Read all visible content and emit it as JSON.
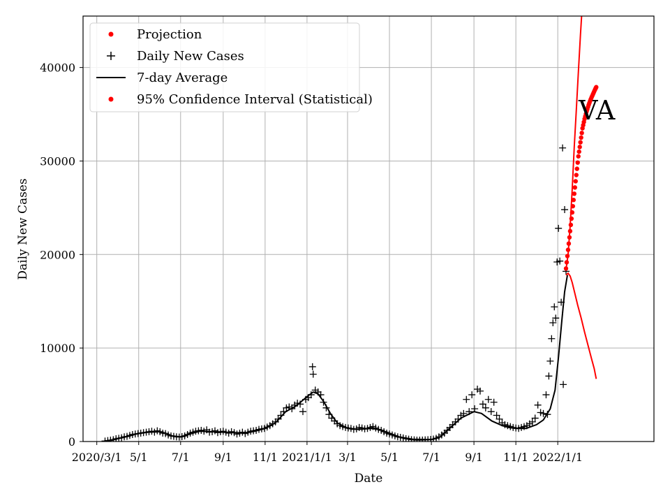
{
  "chart_data": {
    "type": "line",
    "title": "",
    "xlabel": "Date",
    "ylabel": "Daily New Cases",
    "annotation": "VA",
    "grid": true,
    "legend_position": "top-left",
    "xlim": [
      -20,
      811
    ],
    "ylim": [
      0,
      45500
    ],
    "x_ticks": [
      {
        "day": 0,
        "label": "2020/3/1"
      },
      {
        "day": 61,
        "label": "5/1"
      },
      {
        "day": 122,
        "label": "7/1"
      },
      {
        "day": 184,
        "label": "9/1"
      },
      {
        "day": 245,
        "label": "11/1"
      },
      {
        "day": 306,
        "label": "2021/1/1"
      },
      {
        "day": 365,
        "label": "3/1"
      },
      {
        "day": 426,
        "label": "5/1"
      },
      {
        "day": 487,
        "label": "7/1"
      },
      {
        "day": 549,
        "label": "9/1"
      },
      {
        "day": 610,
        "label": "11/1"
      },
      {
        "day": 671,
        "label": "2022/1/1"
      }
    ],
    "y_ticks": [
      0,
      10000,
      20000,
      30000,
      40000
    ],
    "legend": [
      {
        "label": "Projection",
        "marker": "dot",
        "color": "#ff0000"
      },
      {
        "label": "Daily New Cases",
        "marker": "plus",
        "color": "#000000"
      },
      {
        "label": "7-day Average",
        "marker": "line",
        "color": "#000000"
      },
      {
        "label": "95% Confidence Interval (Statistical)",
        "marker": "dot",
        "color": "#ff0000"
      }
    ],
    "series": [
      {
        "name": "7-day Average",
        "color": "#000000",
        "points": [
          [
            10,
            0
          ],
          [
            20,
            100
          ],
          [
            30,
            300
          ],
          [
            45,
            550
          ],
          [
            60,
            850
          ],
          [
            75,
            1000
          ],
          [
            90,
            1050
          ],
          [
            100,
            900
          ],
          [
            110,
            600
          ],
          [
            122,
            500
          ],
          [
            135,
            800
          ],
          [
            150,
            1100
          ],
          [
            165,
            1050
          ],
          [
            184,
            1000
          ],
          [
            200,
            950
          ],
          [
            215,
            900
          ],
          [
            230,
            1100
          ],
          [
            245,
            1400
          ],
          [
            260,
            2000
          ],
          [
            275,
            3200
          ],
          [
            290,
            3800
          ],
          [
            306,
            4800
          ],
          [
            315,
            5300
          ],
          [
            322,
            5100
          ],
          [
            330,
            4300
          ],
          [
            340,
            3000
          ],
          [
            350,
            2000
          ],
          [
            365,
            1400
          ],
          [
            380,
            1300
          ],
          [
            400,
            1400
          ],
          [
            410,
            1300
          ],
          [
            426,
            900
          ],
          [
            440,
            500
          ],
          [
            460,
            250
          ],
          [
            487,
            200
          ],
          [
            500,
            500
          ],
          [
            515,
            1500
          ],
          [
            530,
            2500
          ],
          [
            549,
            3200
          ],
          [
            560,
            3000
          ],
          [
            575,
            2200
          ],
          [
            590,
            1700
          ],
          [
            600,
            1500
          ],
          [
            610,
            1400
          ],
          [
            625,
            1400
          ],
          [
            640,
            1800
          ],
          [
            650,
            2300
          ],
          [
            660,
            3500
          ],
          [
            667,
            5500
          ],
          [
            672,
            9000
          ],
          [
            677,
            13000
          ],
          [
            681,
            16000
          ],
          [
            685,
            17800
          ]
        ]
      },
      {
        "name": "Daily New Cases",
        "color": "#000000",
        "points": [
          [
            12,
            50
          ],
          [
            16,
            100
          ],
          [
            20,
            150
          ],
          [
            24,
            200
          ],
          [
            28,
            300
          ],
          [
            32,
            350
          ],
          [
            36,
            400
          ],
          [
            40,
            500
          ],
          [
            44,
            550
          ],
          [
            48,
            650
          ],
          [
            52,
            750
          ],
          [
            56,
            800
          ],
          [
            60,
            850
          ],
          [
            64,
            900
          ],
          [
            68,
            950
          ],
          [
            72,
            1000
          ],
          [
            76,
            1050
          ],
          [
            80,
            1100
          ],
          [
            84,
            1000
          ],
          [
            88,
            1150
          ],
          [
            92,
            1050
          ],
          [
            96,
            900
          ],
          [
            100,
            850
          ],
          [
            104,
            700
          ],
          [
            108,
            600
          ],
          [
            112,
            550
          ],
          [
            116,
            500
          ],
          [
            120,
            480
          ],
          [
            124,
            520
          ],
          [
            128,
            600
          ],
          [
            132,
            750
          ],
          [
            136,
            900
          ],
          [
            140,
            1000
          ],
          [
            144,
            1100
          ],
          [
            148,
            1150
          ],
          [
            152,
            1200
          ],
          [
            156,
            1100
          ],
          [
            160,
            1250
          ],
          [
            164,
            1000
          ],
          [
            168,
            1050
          ],
          [
            172,
            1150
          ],
          [
            176,
            950
          ],
          [
            180,
            1050
          ],
          [
            184,
            1100
          ],
          [
            188,
            1000
          ],
          [
            192,
            900
          ],
          [
            196,
            1050
          ],
          [
            200,
            950
          ],
          [
            204,
            800
          ],
          [
            208,
            900
          ],
          [
            212,
            1000
          ],
          [
            216,
            850
          ],
          [
            220,
            1000
          ],
          [
            224,
            1100
          ],
          [
            228,
            1150
          ],
          [
            232,
            1200
          ],
          [
            236,
            1300
          ],
          [
            240,
            1350
          ],
          [
            244,
            1400
          ],
          [
            248,
            1550
          ],
          [
            252,
            1700
          ],
          [
            256,
            1900
          ],
          [
            260,
            2100
          ],
          [
            264,
            2400
          ],
          [
            268,
            2800
          ],
          [
            272,
            3200
          ],
          [
            276,
            3600
          ],
          [
            280,
            3700
          ],
          [
            284,
            3500
          ],
          [
            288,
            3900
          ],
          [
            292,
            4100
          ],
          [
            296,
            4000
          ],
          [
            300,
            3200
          ],
          [
            304,
            4500
          ],
          [
            308,
            4700
          ],
          [
            312,
            5000
          ],
          [
            314,
            8000
          ],
          [
            315,
            7200
          ],
          [
            318,
            5500
          ],
          [
            322,
            5300
          ],
          [
            326,
            5000
          ],
          [
            330,
            4200
          ],
          [
            334,
            3600
          ],
          [
            338,
            2900
          ],
          [
            342,
            2500
          ],
          [
            346,
            2200
          ],
          [
            350,
            1900
          ],
          [
            354,
            1700
          ],
          [
            358,
            1600
          ],
          [
            362,
            1500
          ],
          [
            366,
            1450
          ],
          [
            370,
            1400
          ],
          [
            374,
            1300
          ],
          [
            378,
            1350
          ],
          [
            382,
            1500
          ],
          [
            386,
            1450
          ],
          [
            390,
            1350
          ],
          [
            394,
            1400
          ],
          [
            398,
            1500
          ],
          [
            402,
            1600
          ],
          [
            406,
            1450
          ],
          [
            410,
            1300
          ],
          [
            414,
            1200
          ],
          [
            418,
            1050
          ],
          [
            422,
            900
          ],
          [
            426,
            800
          ],
          [
            430,
            700
          ],
          [
            434,
            600
          ],
          [
            438,
            500
          ],
          [
            442,
            450
          ],
          [
            446,
            380
          ],
          [
            450,
            300
          ],
          [
            454,
            250
          ],
          [
            458,
            200
          ],
          [
            462,
            180
          ],
          [
            466,
            150
          ],
          [
            470,
            150
          ],
          [
            474,
            160
          ],
          [
            478,
            180
          ],
          [
            482,
            200
          ],
          [
            486,
            220
          ],
          [
            490,
            260
          ],
          [
            494,
            350
          ],
          [
            498,
            500
          ],
          [
            502,
            700
          ],
          [
            506,
            900
          ],
          [
            510,
            1200
          ],
          [
            514,
            1500
          ],
          [
            518,
            1800
          ],
          [
            522,
            2100
          ],
          [
            526,
            2400
          ],
          [
            530,
            2800
          ],
          [
            534,
            3000
          ],
          [
            538,
            4500
          ],
          [
            542,
            3200
          ],
          [
            546,
            5000
          ],
          [
            550,
            3500
          ],
          [
            554,
            5600
          ],
          [
            558,
            5400
          ],
          [
            562,
            4000
          ],
          [
            566,
            3600
          ],
          [
            570,
            4500
          ],
          [
            574,
            3200
          ],
          [
            578,
            4200
          ],
          [
            582,
            2800
          ],
          [
            586,
            2400
          ],
          [
            590,
            2000
          ],
          [
            594,
            1800
          ],
          [
            598,
            1700
          ],
          [
            602,
            1600
          ],
          [
            606,
            1500
          ],
          [
            610,
            1450
          ],
          [
            614,
            1400
          ],
          [
            618,
            1500
          ],
          [
            622,
            1600
          ],
          [
            626,
            1700
          ],
          [
            630,
            1900
          ],
          [
            634,
            2100
          ],
          [
            638,
            2500
          ],
          [
            642,
            3900
          ],
          [
            646,
            3100
          ],
          [
            650,
            3000
          ],
          [
            654,
            5000
          ],
          [
            656,
            2900
          ],
          [
            658,
            7000
          ],
          [
            660,
            8600
          ],
          [
            662,
            11000
          ],
          [
            664,
            12700
          ],
          [
            666,
            14400
          ],
          [
            668,
            13200
          ],
          [
            670,
            19200
          ],
          [
            672,
            22800
          ],
          [
            674,
            19300
          ],
          [
            676,
            14900
          ],
          [
            678,
            31400
          ],
          [
            679,
            6100
          ],
          [
            681,
            24800
          ],
          [
            683,
            18200
          ]
        ]
      },
      {
        "name": "Projection",
        "color": "#ff0000",
        "points": [
          [
            683,
            18400
          ],
          [
            686,
            20000
          ],
          [
            689,
            23000
          ],
          [
            692,
            27000
          ],
          [
            695,
            31500
          ],
          [
            698,
            35500
          ],
          [
            701,
            39500
          ],
          [
            704,
            43500
          ],
          [
            707,
            47000
          ]
        ]
      },
      {
        "name": "95% Confidence Interval (Statistical)",
        "color": "#ff0000",
        "upper": [
          [
            683,
            18500
          ],
          [
            686,
            20500
          ],
          [
            689,
            22500
          ],
          [
            692,
            24500
          ],
          [
            695,
            26500
          ],
          [
            698,
            28500
          ],
          [
            701,
            30500
          ],
          [
            704,
            32000
          ],
          [
            707,
            33500
          ],
          [
            710,
            34500
          ],
          [
            713,
            35300
          ],
          [
            716,
            36000
          ],
          [
            719,
            36600
          ],
          [
            722,
            37100
          ],
          [
            725,
            37600
          ],
          [
            727,
            37900
          ]
        ],
        "lower": [
          [
            683,
            17800
          ],
          [
            686,
            18000
          ],
          [
            689,
            17700
          ],
          [
            692,
            17000
          ],
          [
            696,
            15800
          ],
          [
            700,
            14600
          ],
          [
            705,
            13200
          ],
          [
            710,
            11700
          ],
          [
            715,
            10300
          ],
          [
            720,
            8900
          ],
          [
            724,
            7800
          ],
          [
            727,
            6700
          ]
        ]
      }
    ]
  }
}
